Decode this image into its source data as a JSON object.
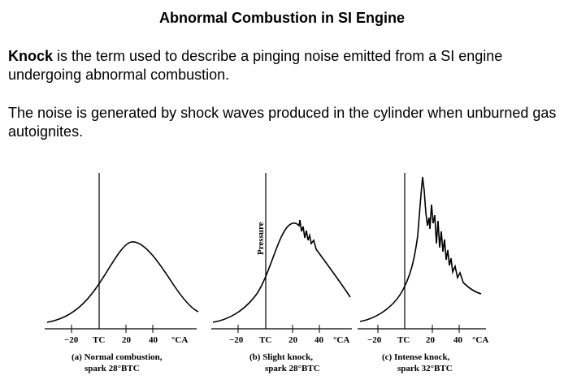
{
  "slide": {
    "title": "Abnormal Combustion in SI Engine",
    "para1_bold": "Knock",
    "para1_rest": " is the term used to describe a pinging noise emitted from a SI engine undergoing abnormal combustion.",
    "para2": "The noise is generated by shock waves produced in the cylinder when unburned gas autoignites."
  },
  "figure": {
    "ylabel": "Pressure",
    "ticks": [
      "−20",
      "TC",
      "20",
      "40",
      "°CA"
    ],
    "panels": [
      {
        "caption1": "(a) Normal combustion,",
        "caption2": "spark 28°BTC"
      },
      {
        "caption1": "(b) Slight knock,",
        "caption2": "spark 28°BTC"
      },
      {
        "caption1": "(c) Intense knock,",
        "caption2": "spark 32°BTC"
      }
    ]
  }
}
